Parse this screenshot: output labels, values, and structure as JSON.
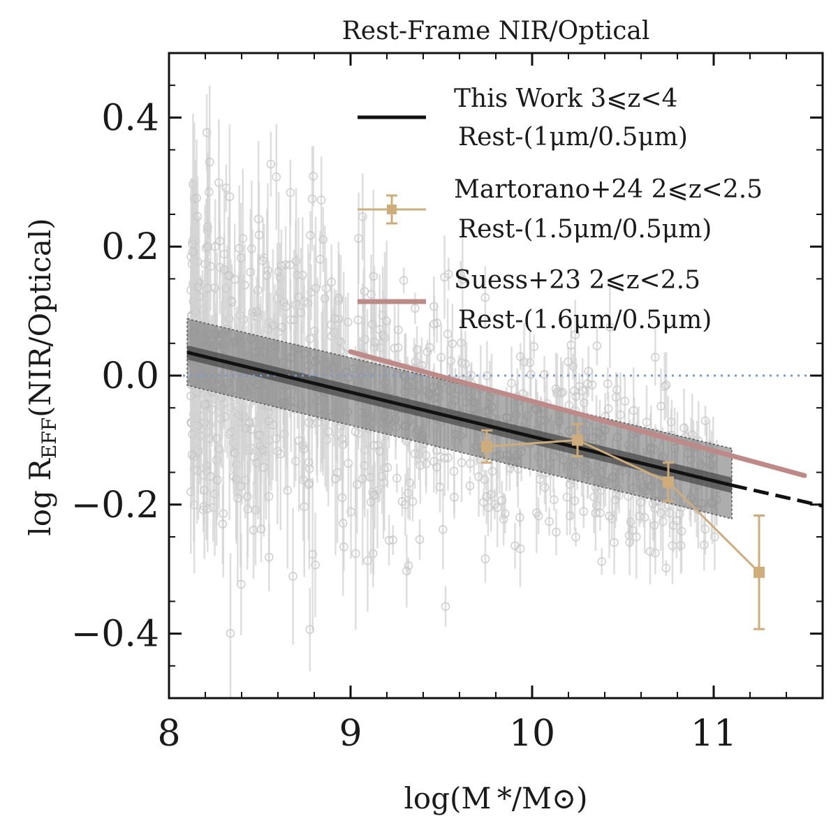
{
  "chart_data": {
    "type": "scatter",
    "title": "Rest-Frame NIR/Optical",
    "xlabel": "log(M */M⊙)",
    "ylabel_main": "log R",
    "ylabel_sub": "EFF",
    "ylabel_rest": "(NIR/Optical)",
    "xlim": [
      8.0,
      11.6
    ],
    "ylim": [
      -0.5,
      0.5
    ],
    "x_ticks": [
      8,
      9,
      10,
      11
    ],
    "x_tick_labels": [
      "8",
      "9",
      "10",
      "11"
    ],
    "y_ticks": [
      0.4,
      0.2,
      0.0,
      -0.2,
      -0.4
    ],
    "y_tick_labels": [
      "0.4",
      "0.2",
      "0.0",
      "−0.2",
      "−0.4"
    ],
    "reference_line": {
      "y": 0.0,
      "style": "dotted",
      "color": "#7b98cc"
    },
    "this_work": {
      "name": "This Work 3⩽z<4",
      "subname": "Rest-(1μm/0.5μm)",
      "color": "#111111",
      "fit_line": {
        "x": [
          8.1,
          11.1
        ],
        "y": [
          0.036,
          -0.17
        ]
      },
      "extrapolation": {
        "x": [
          11.1,
          11.6
        ],
        "y": [
          -0.17,
          -0.202
        ]
      },
      "inner_band": {
        "x": [
          8.1,
          11.1
        ],
        "y_low": [
          0.025,
          -0.182
        ],
        "y_high": [
          0.047,
          -0.158
        ]
      },
      "scatter_band": {
        "x": [
          8.1,
          11.1
        ],
        "y_low": [
          -0.015,
          -0.222
        ],
        "y_high": [
          0.088,
          -0.113
        ]
      }
    },
    "martorano24": {
      "name": "Martorano+24 2⩽z<2.5",
      "subname": "Rest-(1.5μm/0.5μm)",
      "color": "#cfac7c",
      "x": [
        9.75,
        10.25,
        10.75,
        11.25
      ],
      "y": [
        -0.11,
        -0.1,
        -0.165,
        -0.305
      ],
      "yerr_low": [
        0.025,
        0.025,
        0.03,
        0.088
      ],
      "yerr_high": [
        0.025,
        0.025,
        0.03,
        0.088
      ]
    },
    "suess23": {
      "name": "Suess+23 2⩽z<2.5",
      "subname": "Rest-(1.6μm/0.5μm)",
      "color": "#bd8a88",
      "x": [
        9.0,
        11.5
      ],
      "y": [
        0.037,
        -0.155
      ]
    },
    "legend_location": "upper right",
    "sample_points_note": "gray points with error bars"
  }
}
